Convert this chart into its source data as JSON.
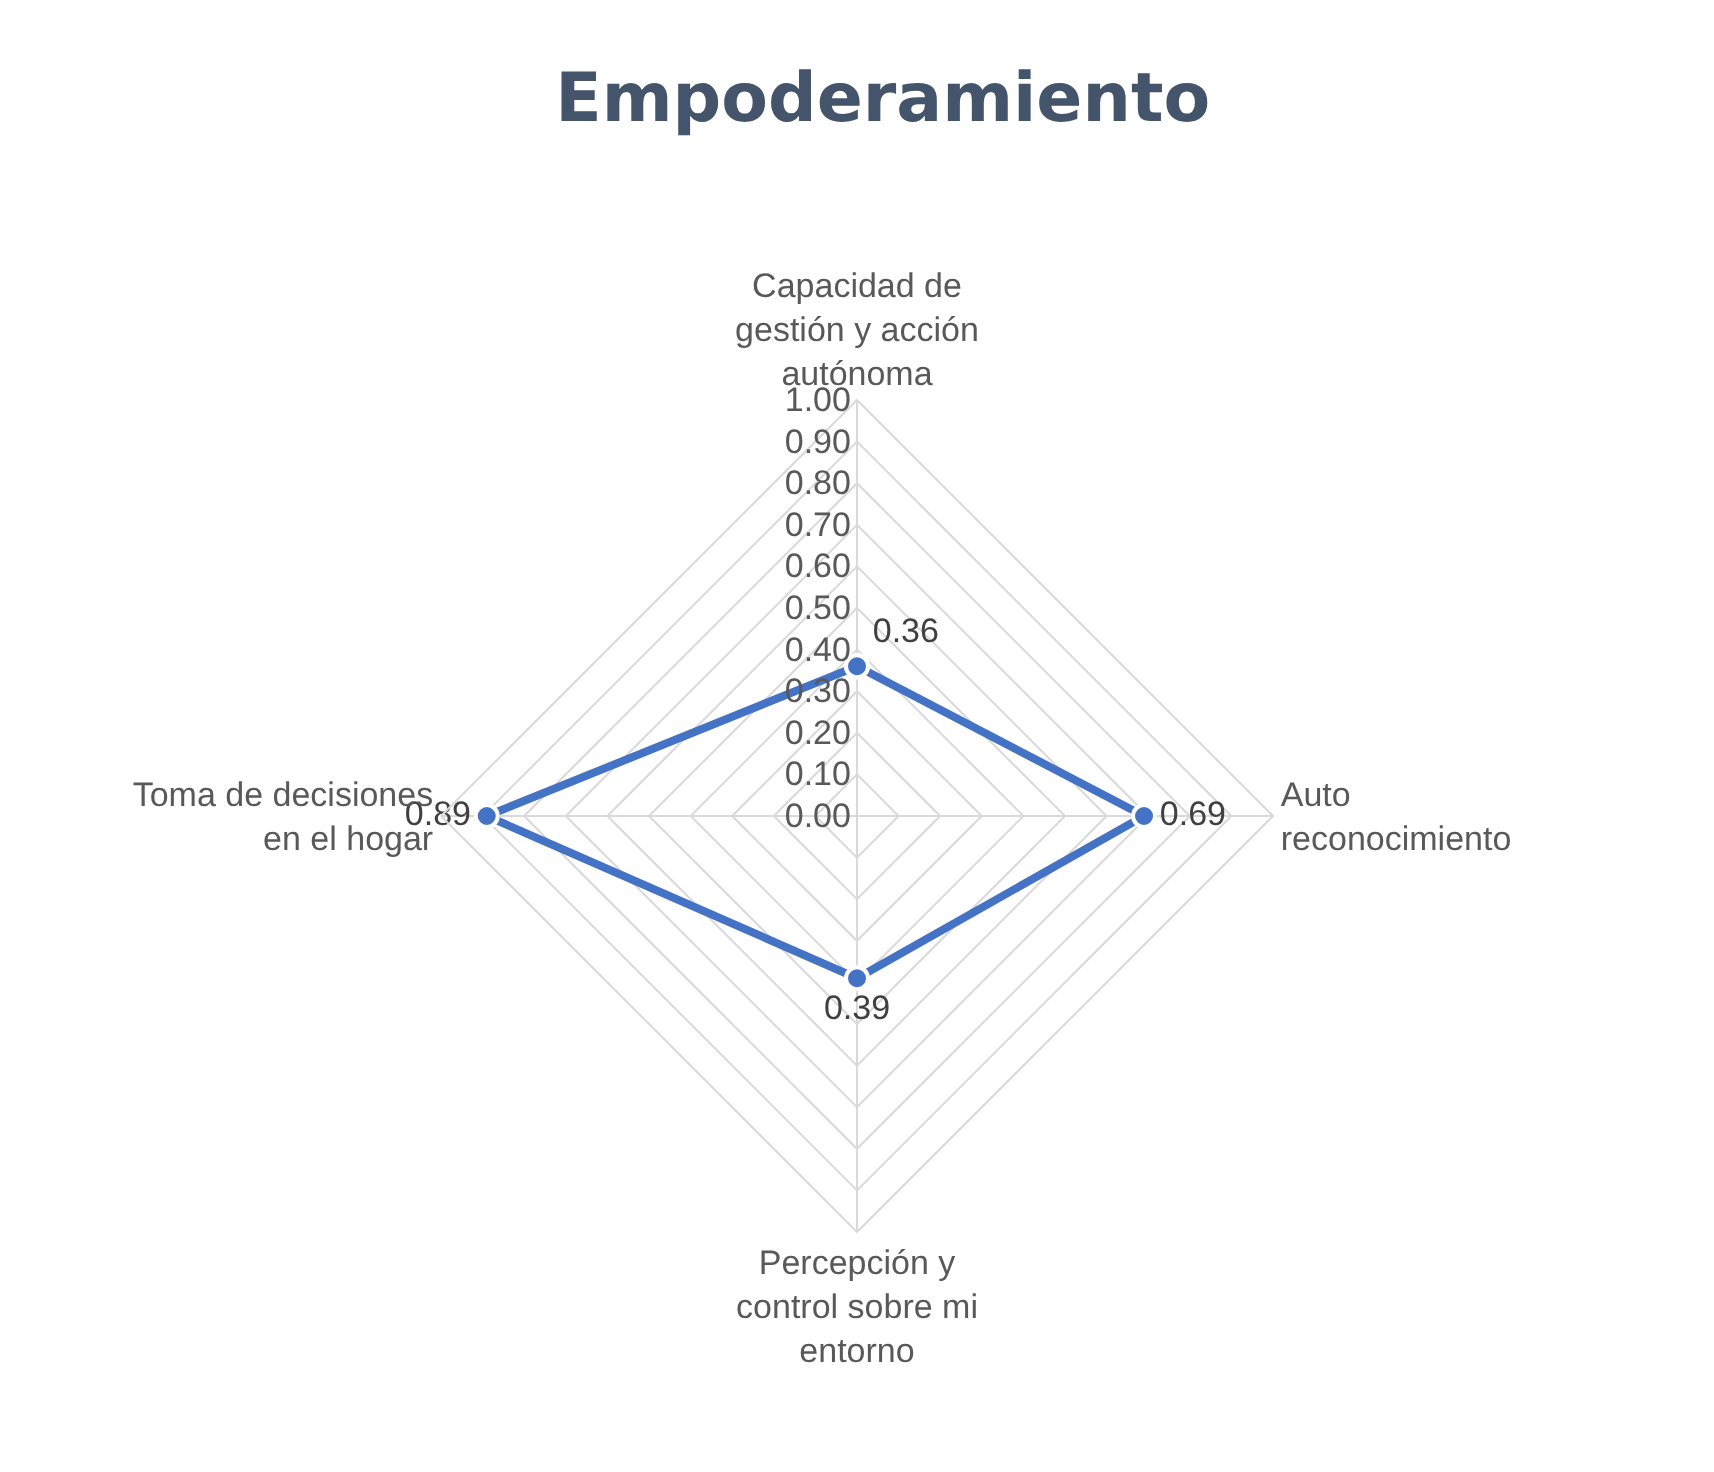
{
  "chart_data": {
    "type": "radar",
    "title": "Empoderamiento",
    "categories": [
      "Capacidad de gestión y acción autónoma",
      "Auto reconocimiento",
      "Percepción y control sobre mi entorno",
      "Toma de decisiones en el hogar"
    ],
    "series": [
      {
        "color": "#4472c4",
        "values": [
          0.36,
          0.69,
          0.39,
          0.89
        ]
      }
    ],
    "ylim": [
      0,
      1
    ],
    "yticks": [
      {
        "value": 0,
        "label": "0.00"
      },
      {
        "value": 0.1,
        "label": "0.10"
      },
      {
        "value": 0.2,
        "label": "0.20"
      },
      {
        "value": 0.3,
        "label": "0.30"
      },
      {
        "value": 0.4,
        "label": "0.40"
      },
      {
        "value": 0.5,
        "label": "0.50"
      },
      {
        "value": 0.6,
        "label": "0.60"
      },
      {
        "value": 0.7,
        "label": "0.70"
      },
      {
        "value": 0.8,
        "label": "0.80"
      },
      {
        "value": 0.9,
        "label": "0.90"
      },
      {
        "value": 1,
        "label": "1.00"
      }
    ],
    "grid": true,
    "marker": "circle",
    "line_style": "solid",
    "data_labels": true
  }
}
